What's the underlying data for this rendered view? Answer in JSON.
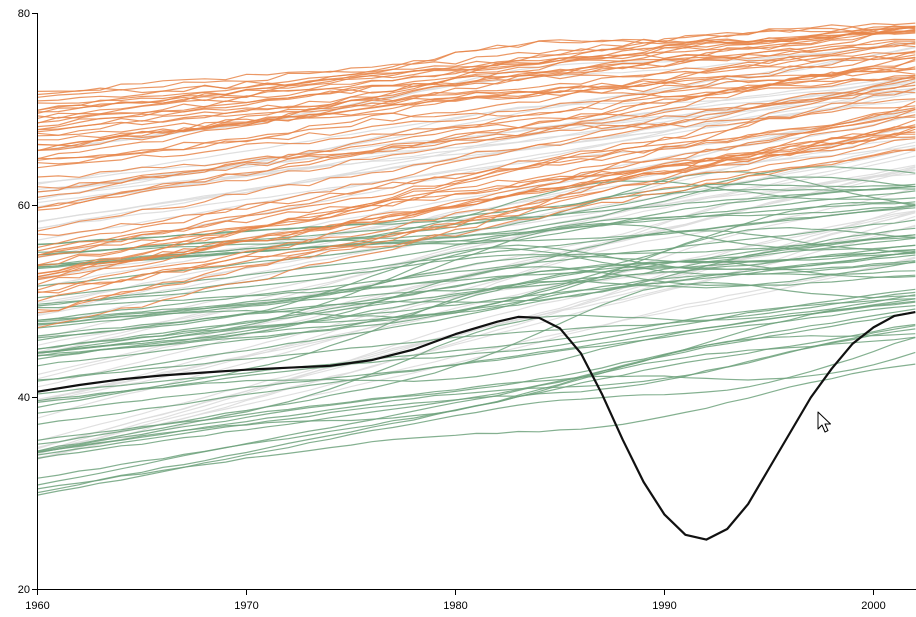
{
  "chart_data": {
    "type": "line",
    "title": "",
    "xlabel": "",
    "ylabel": "",
    "xlim": [
      1960,
      2002
    ],
    "ylim": [
      20,
      80
    ],
    "x_ticks": [
      1960,
      1970,
      1980,
      1990,
      2000
    ],
    "y_ticks": [
      20,
      40,
      60,
      80
    ],
    "x_tick_labels": [
      "1960",
      "1970",
      "1980",
      "1990",
      "2000"
    ],
    "y_tick_labels": [
      "20",
      "40",
      "60",
      "80"
    ],
    "grid": false,
    "legend": "none",
    "colors": {
      "high": "#e8864a",
      "low": "#6fa27c",
      "muted": "#dddddd",
      "highlight": "#111111"
    },
    "groups": [
      {
        "color_key": "high",
        "series_count": 60,
        "start_range": [
          47,
          72
        ],
        "end_range": [
          60,
          78.5
        ]
      },
      {
        "color_key": "low",
        "series_count": 55,
        "start_range": [
          29.5,
          57
        ],
        "end_range": [
          37,
          62
        ]
      },
      {
        "color_key": "muted",
        "series_count": 45,
        "start_range": [
          33,
          66
        ],
        "end_range": [
          46,
          77
        ]
      }
    ],
    "highlight_series": {
      "color_key": "highlight",
      "x": [
        1960,
        1962,
        1964,
        1966,
        1968,
        1970,
        1972,
        1974,
        1976,
        1978,
        1980,
        1982,
        1983,
        1984,
        1985,
        1986,
        1987,
        1988,
        1989,
        1990,
        1991,
        1992,
        1993,
        1994,
        1995,
        1996,
        1997,
        1998,
        1999,
        2000,
        2001,
        2002
      ],
      "y": [
        40.6,
        41.3,
        41.9,
        42.3,
        42.6,
        42.9,
        43.1,
        43.3,
        43.9,
        45.0,
        46.6,
        47.9,
        48.4,
        48.3,
        47.2,
        44.6,
        40.4,
        35.6,
        31.2,
        27.8,
        25.7,
        25.2,
        26.3,
        28.9,
        32.6,
        36.3,
        40.0,
        43.0,
        45.6,
        47.3,
        48.5,
        48.9
      ]
    }
  }
}
